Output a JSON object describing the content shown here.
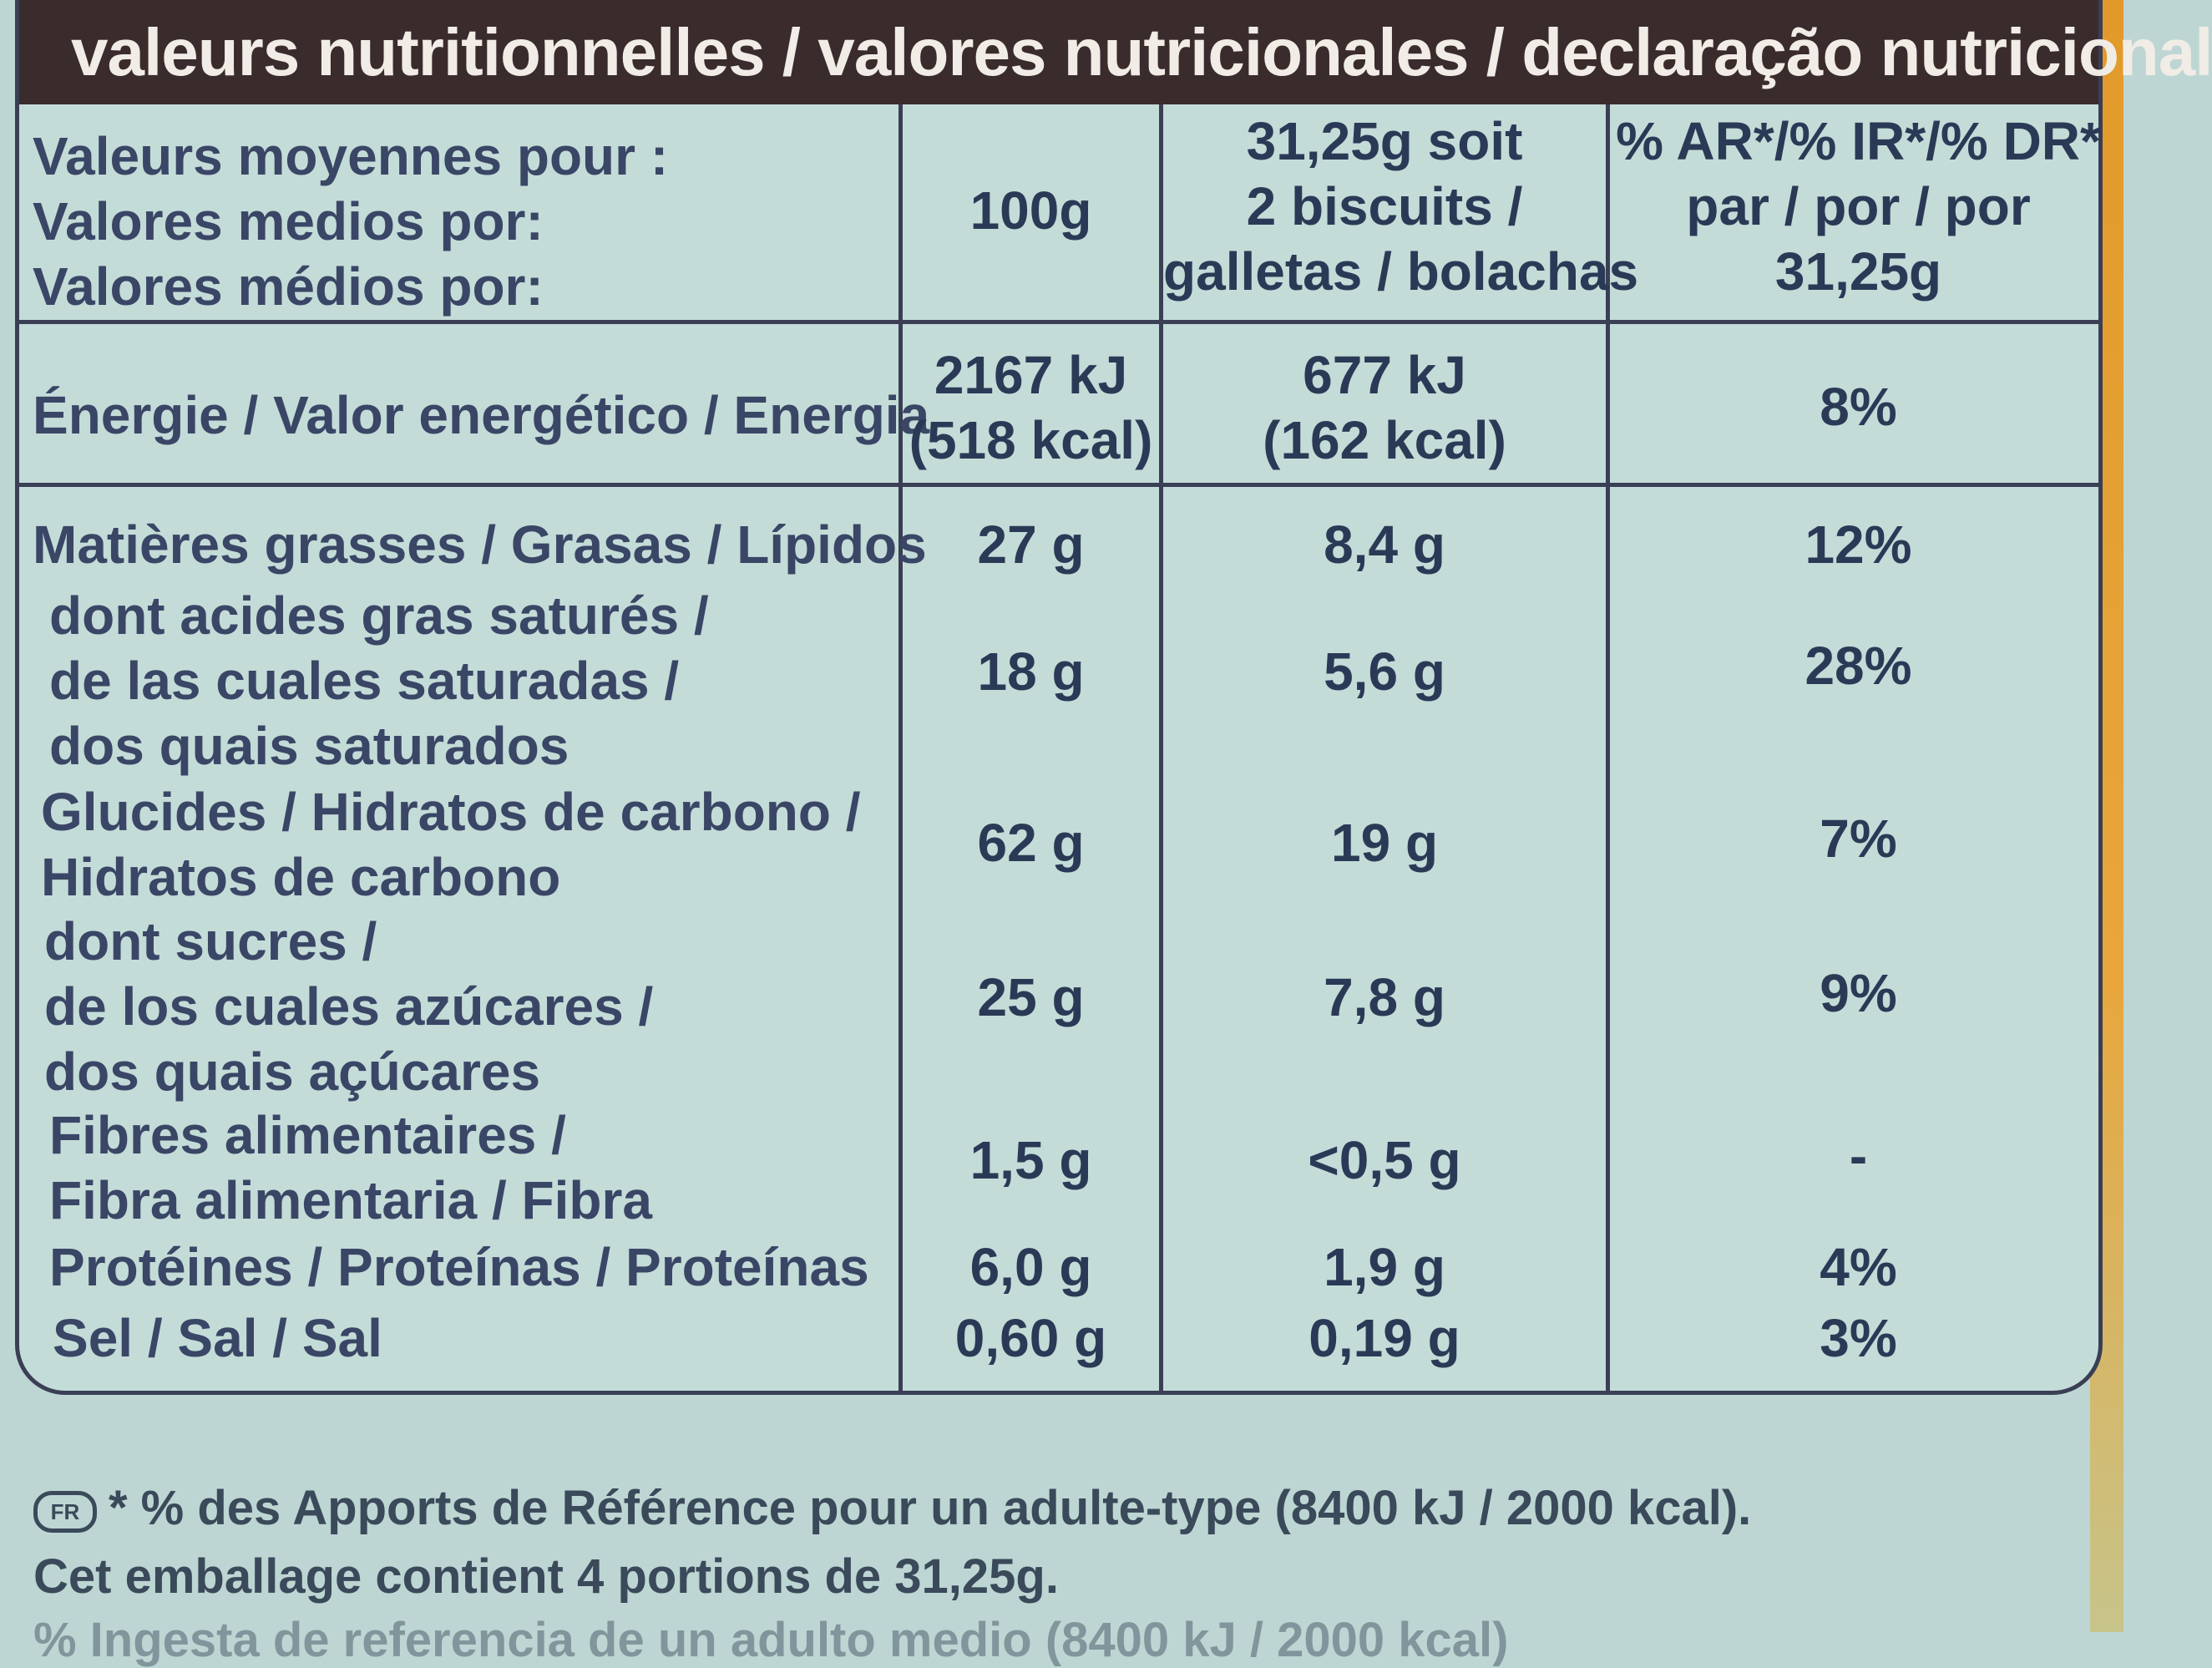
{
  "header": {
    "title": "valeurs nutritionnelles / valores nutricionales / declaração nutricional"
  },
  "columns": {
    "label": [
      "Valeurs moyennes pour :",
      "Valores medios por:",
      "Valores médios por:"
    ],
    "per100": "100g",
    "portion": [
      "31,25g soit",
      "2 biscuits /",
      "galletas / bolachas"
    ],
    "ri": [
      "% AR*/% IR*/% DR*",
      "par / por / por",
      "31,25g"
    ]
  },
  "energy": {
    "label": "Énergie / Valor energético / Energia",
    "per100": [
      "2167 kJ",
      "(518 kcal)"
    ],
    "portion": [
      "677 kJ",
      "(162 kcal)"
    ],
    "ri": "8%"
  },
  "rows": [
    {
      "label": [
        "Matières grasses / Grasas / Lípidos"
      ],
      "per100": "27 g",
      "portion": "8,4 g",
      "ri": "12%"
    },
    {
      "label": [
        "dont acides gras saturés /",
        "de las cuales saturadas /",
        "dos quais saturados"
      ],
      "per100": "18 g",
      "portion": "5,6 g",
      "ri": "28%"
    },
    {
      "label": [
        "Glucides / Hidratos de carbono /",
        "Hidratos de carbono"
      ],
      "per100": "62 g",
      "portion": "19 g",
      "ri": "7%"
    },
    {
      "label": [
        "dont sucres /",
        "de los cuales azúcares /",
        "dos quais açúcares"
      ],
      "per100": "25 g",
      "portion": "7,8 g",
      "ri": "9%"
    },
    {
      "label": [
        "Fibres alimentaires /",
        "Fibra alimentaria / Fibra"
      ],
      "per100": "1,5 g",
      "portion": "<0,5 g",
      "ri": "-"
    },
    {
      "label": [
        "Protéines / Proteínas / Proteínas"
      ],
      "per100": "6,0 g",
      "portion": "1,9 g",
      "ri": "4%"
    },
    {
      "label": [
        "Sel / Sal / Sal"
      ],
      "per100": "0,60 g",
      "portion": "0,19 g",
      "ri": "3%"
    }
  ],
  "footer": {
    "badge": "FR",
    "line1": "* % des Apports de Référence pour un adulte-type (8400 kJ / 2000 kcal).",
    "line2": "Cet emballage contient 4 portions de 31,25g.",
    "cut_line": "% Ingesta de referencia de un adulto medio (8400 kJ / 2000 kcal)"
  }
}
